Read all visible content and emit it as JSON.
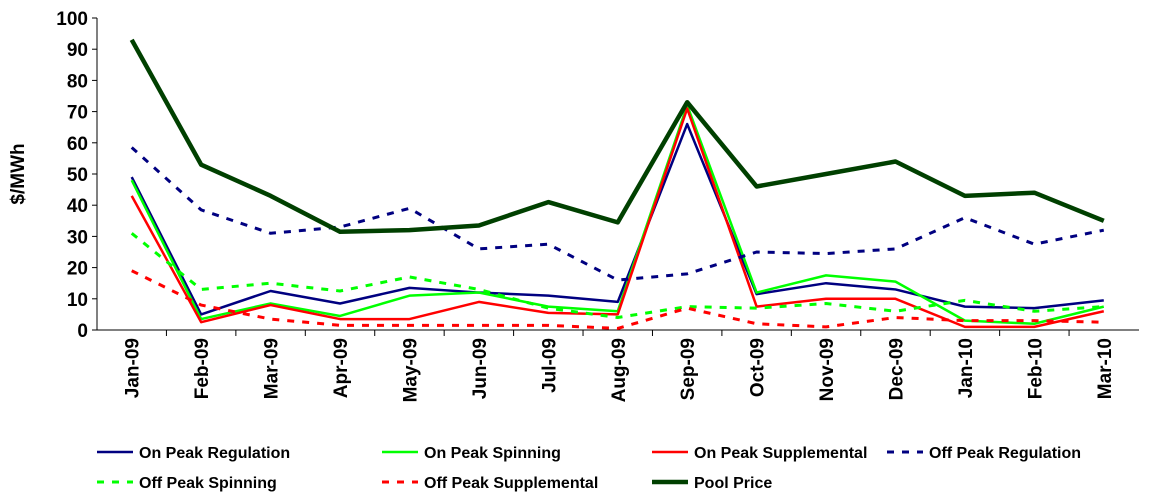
{
  "chart_data": {
    "type": "line",
    "y_label": "$/MWh",
    "categories": [
      "Jan-09",
      "Feb-09",
      "Mar-09",
      "Apr-09",
      "May-09",
      "Jun-09",
      "Jul-09",
      "Aug-09",
      "Sep-09",
      "Oct-09",
      "Nov-09",
      "Dec-09",
      "Jan-10",
      "Feb-10",
      "Mar-10"
    ],
    "ylim": [
      0,
      100
    ],
    "yticks": [
      0,
      10,
      20,
      30,
      40,
      50,
      60,
      70,
      80,
      90,
      100
    ],
    "grid": false,
    "legend": "bottom",
    "series": [
      {
        "name": "On Peak Regulation",
        "color": "#000080",
        "style": "solid",
        "values": [
          49,
          5,
          12.5,
          8.5,
          13.5,
          12,
          11,
          9,
          66,
          11.5,
          15,
          13,
          7.5,
          7,
          9.5
        ]
      },
      {
        "name": "On Peak Spinning",
        "color": "#00ff00",
        "style": "solid",
        "values": [
          48,
          3.5,
          8.5,
          4.5,
          11,
          12,
          7.5,
          6,
          72,
          12,
          17.5,
          15.5,
          3,
          2,
          7.5
        ]
      },
      {
        "name": "On Peak Supplemental",
        "color": "#ff0000",
        "style": "solid",
        "values": [
          43,
          2.5,
          8,
          3.5,
          3.5,
          9,
          5.5,
          5,
          71,
          7.5,
          10,
          10,
          1,
          1,
          6
        ]
      },
      {
        "name": "Off Peak Regulation",
        "color": "#000080",
        "style": "dashed",
        "values": [
          58.5,
          38.5,
          31,
          33,
          39,
          26,
          27.5,
          16,
          18,
          25,
          24.5,
          26,
          36,
          27.5,
          32
        ]
      },
      {
        "name": "Off Peak Spinning",
        "color": "#00ff00",
        "style": "dashed",
        "values": [
          31,
          13,
          15,
          12.5,
          17,
          13,
          7,
          4,
          7.5,
          7,
          8.5,
          6,
          9.5,
          6,
          7.5
        ]
      },
      {
        "name": "Off Peak Supplemental",
        "color": "#ff0000",
        "style": "dashed",
        "values": [
          19,
          8,
          3.5,
          1.5,
          1.5,
          1.5,
          1.5,
          0.5,
          7,
          2,
          1,
          4,
          3,
          3,
          2.5
        ]
      },
      {
        "name": "Pool Price",
        "color": "#004000",
        "style": "thick",
        "values": [
          93,
          53,
          43,
          31.5,
          32,
          33.5,
          41,
          34.5,
          73,
          46,
          50,
          54,
          43,
          44,
          35
        ]
      }
    ]
  }
}
